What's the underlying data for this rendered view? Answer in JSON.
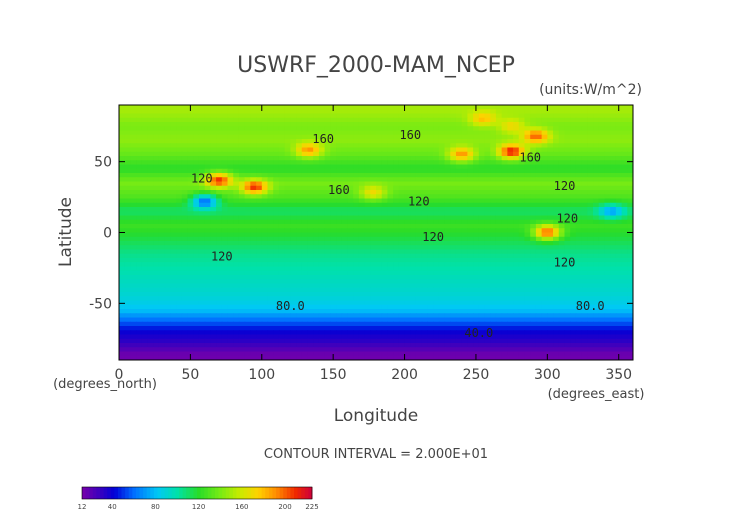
{
  "chart_data": {
    "type": "heatmap",
    "title": "USWRF_2000-MAM_NCEP",
    "units_label": "(units:W/m^2)",
    "xlabel": "Longitude",
    "ylabel": "Latitude",
    "x_units": "(degrees_east)",
    "y_units": "(degrees_north)",
    "xlim": [
      0,
      360
    ],
    "ylim": [
      -90,
      90
    ],
    "x_ticks": [
      0,
      50,
      100,
      150,
      200,
      250,
      300,
      350
    ],
    "y_ticks": [
      50,
      0,
      -50
    ],
    "contour_interval_text": "CONTOUR INTERVAL = 2.000E+01",
    "contour_labels": [
      {
        "text": "160",
        "lon": 143,
        "lat": 66
      },
      {
        "text": "160",
        "lon": 204,
        "lat": 69
      },
      {
        "text": "160",
        "lon": 288,
        "lat": 53
      },
      {
        "text": "160",
        "lon": 154,
        "lat": 30
      },
      {
        "text": "120",
        "lon": 58,
        "lat": 38
      },
      {
        "text": "120",
        "lon": 210,
        "lat": 22
      },
      {
        "text": "120",
        "lon": 312,
        "lat": 33
      },
      {
        "text": "120",
        "lon": 314,
        "lat": 10
      },
      {
        "text": "120",
        "lon": 220,
        "lat": -3
      },
      {
        "text": "120",
        "lon": 72,
        "lat": -17
      },
      {
        "text": "120",
        "lon": 312,
        "lat": -21
      },
      {
        "text": "80.0",
        "lon": 120,
        "lat": -52
      },
      {
        "text": "80.0",
        "lon": 330,
        "lat": -52
      },
      {
        "text": "40.0",
        "lon": 252,
        "lat": -71
      }
    ],
    "latitude_band_means": [
      {
        "lat": 85,
        "value": 150
      },
      {
        "lat": 75,
        "value": 140
      },
      {
        "lat": 65,
        "value": 145
      },
      {
        "lat": 55,
        "value": 135
      },
      {
        "lat": 45,
        "value": 120
      },
      {
        "lat": 35,
        "value": 140
      },
      {
        "lat": 25,
        "value": 130
      },
      {
        "lat": 15,
        "value": 110
      },
      {
        "lat": 5,
        "value": 125
      },
      {
        "lat": -5,
        "value": 115
      },
      {
        "lat": -15,
        "value": 105
      },
      {
        "lat": -25,
        "value": 100
      },
      {
        "lat": -35,
        "value": 95
      },
      {
        "lat": -45,
        "value": 90
      },
      {
        "lat": -55,
        "value": 80
      },
      {
        "lat": -62,
        "value": 60
      },
      {
        "lat": -70,
        "value": 40
      },
      {
        "lat": -78,
        "value": 30
      },
      {
        "lat": -86,
        "value": 15
      }
    ],
    "hotspots": [
      {
        "lon": 133,
        "lat": 58,
        "value": 190
      },
      {
        "lon": 70,
        "lat": 37,
        "value": 210
      },
      {
        "lon": 95,
        "lat": 32,
        "value": 210
      },
      {
        "lon": 240,
        "lat": 55,
        "value": 190
      },
      {
        "lon": 275,
        "lat": 57,
        "value": 215
      },
      {
        "lon": 292,
        "lat": 68,
        "value": 200
      },
      {
        "lon": 300,
        "lat": 0,
        "value": 200
      },
      {
        "lon": 255,
        "lat": 80,
        "value": 180
      },
      {
        "lon": 60,
        "lat": 22,
        "value": 60
      },
      {
        "lon": 345,
        "lat": 15,
        "value": 70
      },
      {
        "lon": 275,
        "lat": 75,
        "value": 170
      },
      {
        "lon": 178,
        "lat": 28,
        "value": 170
      }
    ],
    "colorbar": {
      "min": 12,
      "max": 225,
      "tick_labels": [
        "12",
        "40",
        "80",
        "120",
        "160",
        "200",
        "225"
      ],
      "tick_values": [
        12,
        40,
        80,
        120,
        160,
        200,
        225
      ]
    },
    "grid": false,
    "legend": "colorbar bottom-left"
  }
}
